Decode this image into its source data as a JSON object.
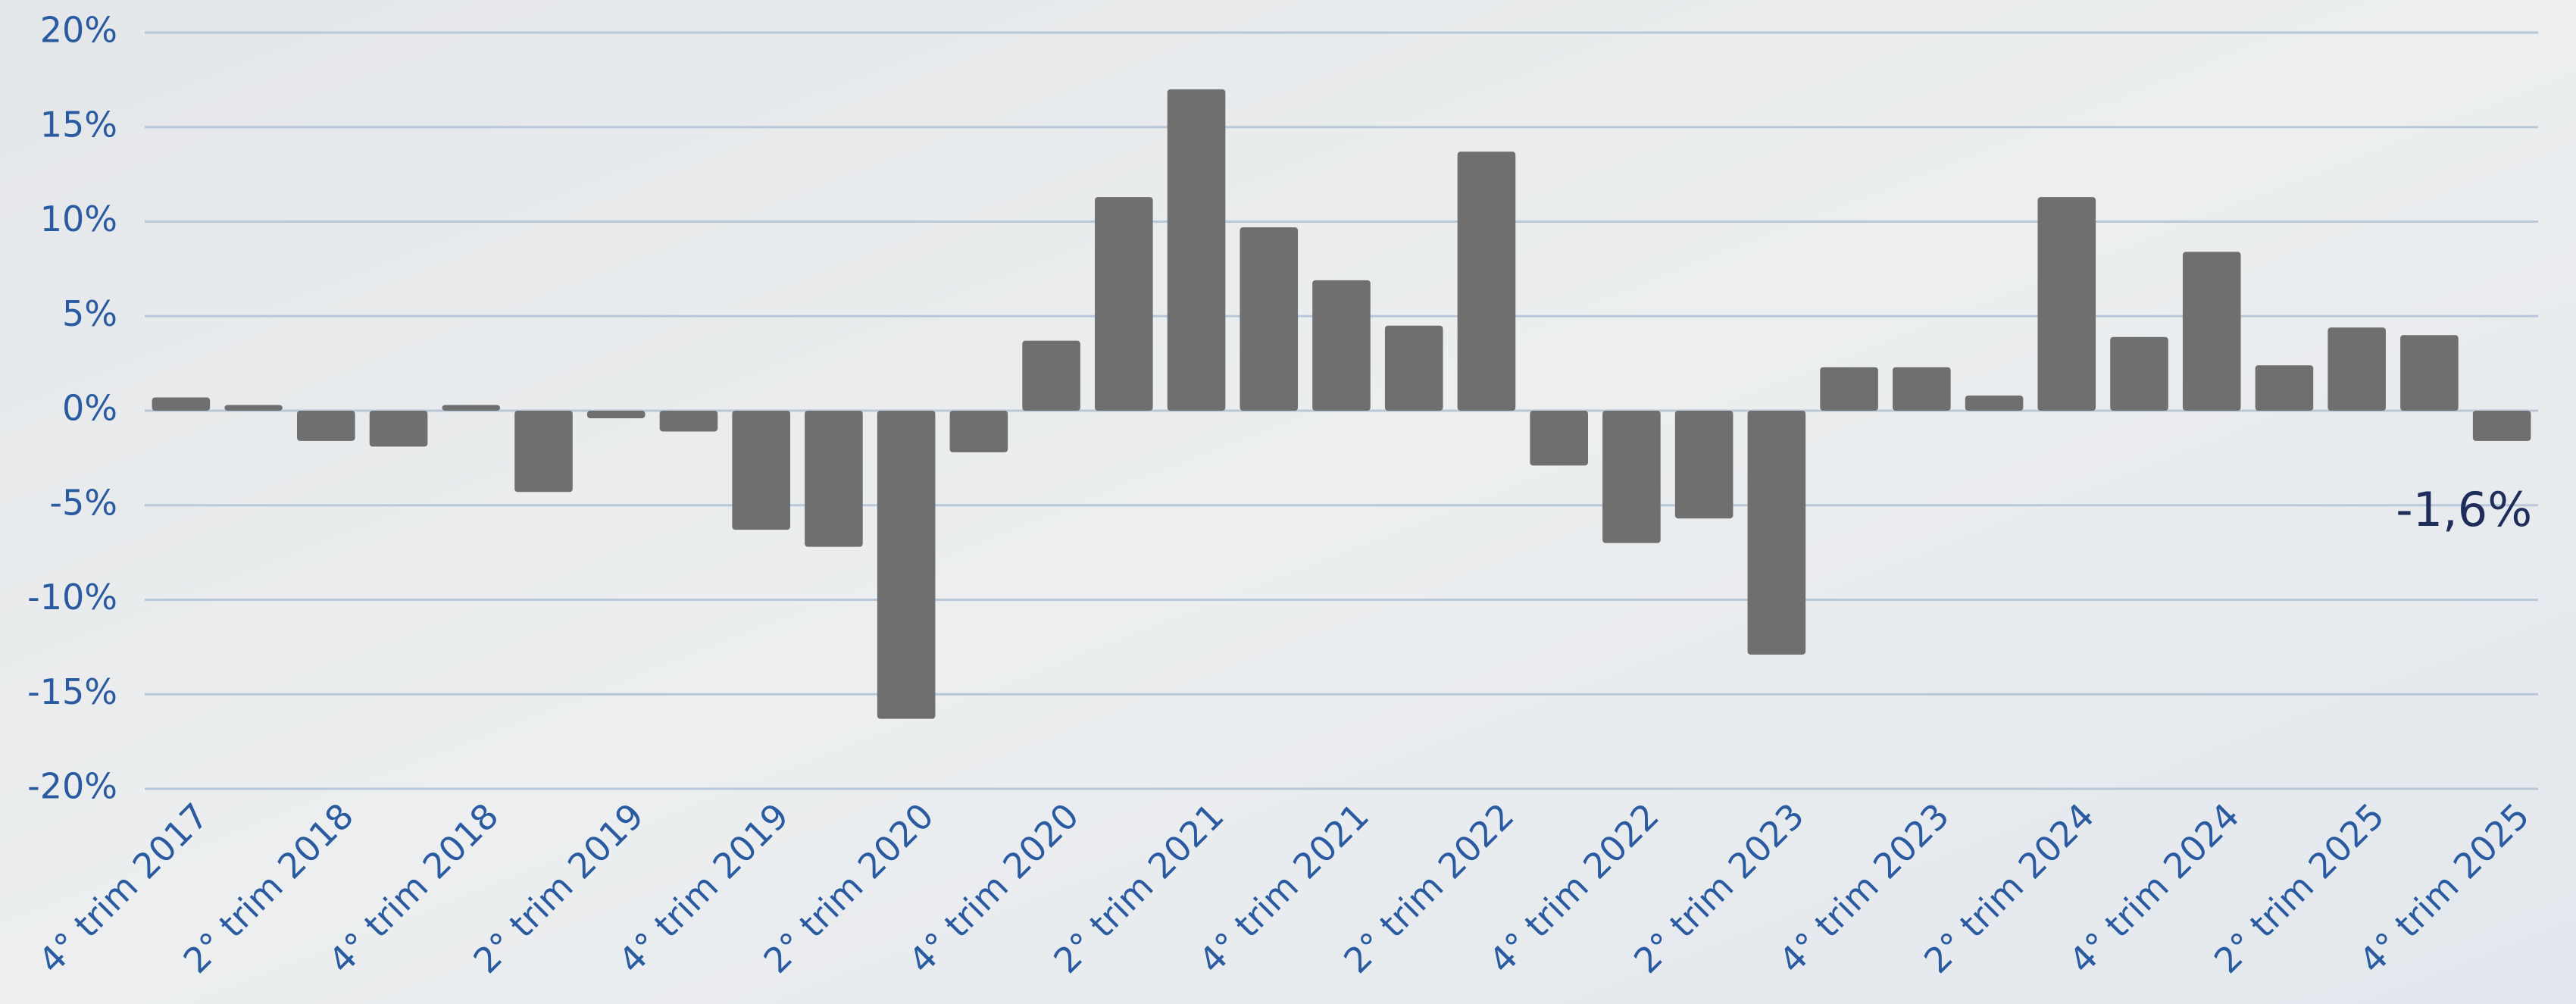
{
  "chart_data": {
    "type": "bar",
    "categories": [
      "4° trim 2017",
      null,
      "2° trim 2018",
      null,
      "4° trim 2018",
      null,
      "2° trim 2019",
      null,
      "4° trim 2019",
      null,
      "2° trim 2020",
      null,
      "4° trim 2020",
      null,
      "2° trim 2021",
      null,
      "4° trim 2021",
      null,
      "2° trim 2022",
      null,
      "4° trim 2022",
      null,
      "2° trim 2023",
      null,
      "4° trim 2023",
      null,
      "2° trim 2024",
      null,
      "4° trim 2024",
      null,
      "2° trim 2025",
      null,
      "4° trim 2025"
    ],
    "values": [
      0.7,
      0.3,
      -1.6,
      -1.9,
      0.3,
      -4.3,
      -0.4,
      -1.1,
      -6.3,
      -7.2,
      -16.3,
      -2.2,
      3.7,
      11.3,
      17.0,
      9.7,
      6.9,
      4.5,
      13.7,
      -2.9,
      -7.0,
      -5.7,
      -12.9,
      2.3,
      2.3,
      0.8,
      11.3,
      3.9,
      8.4,
      2.4,
      4.4,
      4.0,
      -1.6
    ],
    "value_labels": [
      null,
      null,
      null,
      null,
      null,
      null,
      null,
      null,
      null,
      null,
      null,
      null,
      null,
      null,
      null,
      null,
      null,
      null,
      null,
      null,
      null,
      null,
      null,
      null,
      null,
      null,
      null,
      null,
      null,
      null,
      null,
      null,
      "-1,6%"
    ],
    "color": "#6f6f6f",
    "ylim": [
      -20,
      20
    ],
    "yticks": [
      {
        "value": -20,
        "label": "-20%"
      },
      {
        "value": -15,
        "label": "-15%"
      },
      {
        "value": -10,
        "label": "-10%"
      },
      {
        "value": -5,
        "label": "-5%"
      },
      {
        "value": 0,
        "label": "0%"
      },
      {
        "value": 5,
        "label": "5%"
      },
      {
        "value": 10,
        "label": "10%"
      },
      {
        "value": 15,
        "label": "15%"
      },
      {
        "value": 20,
        "label": "20%"
      }
    ],
    "grid": true
  }
}
